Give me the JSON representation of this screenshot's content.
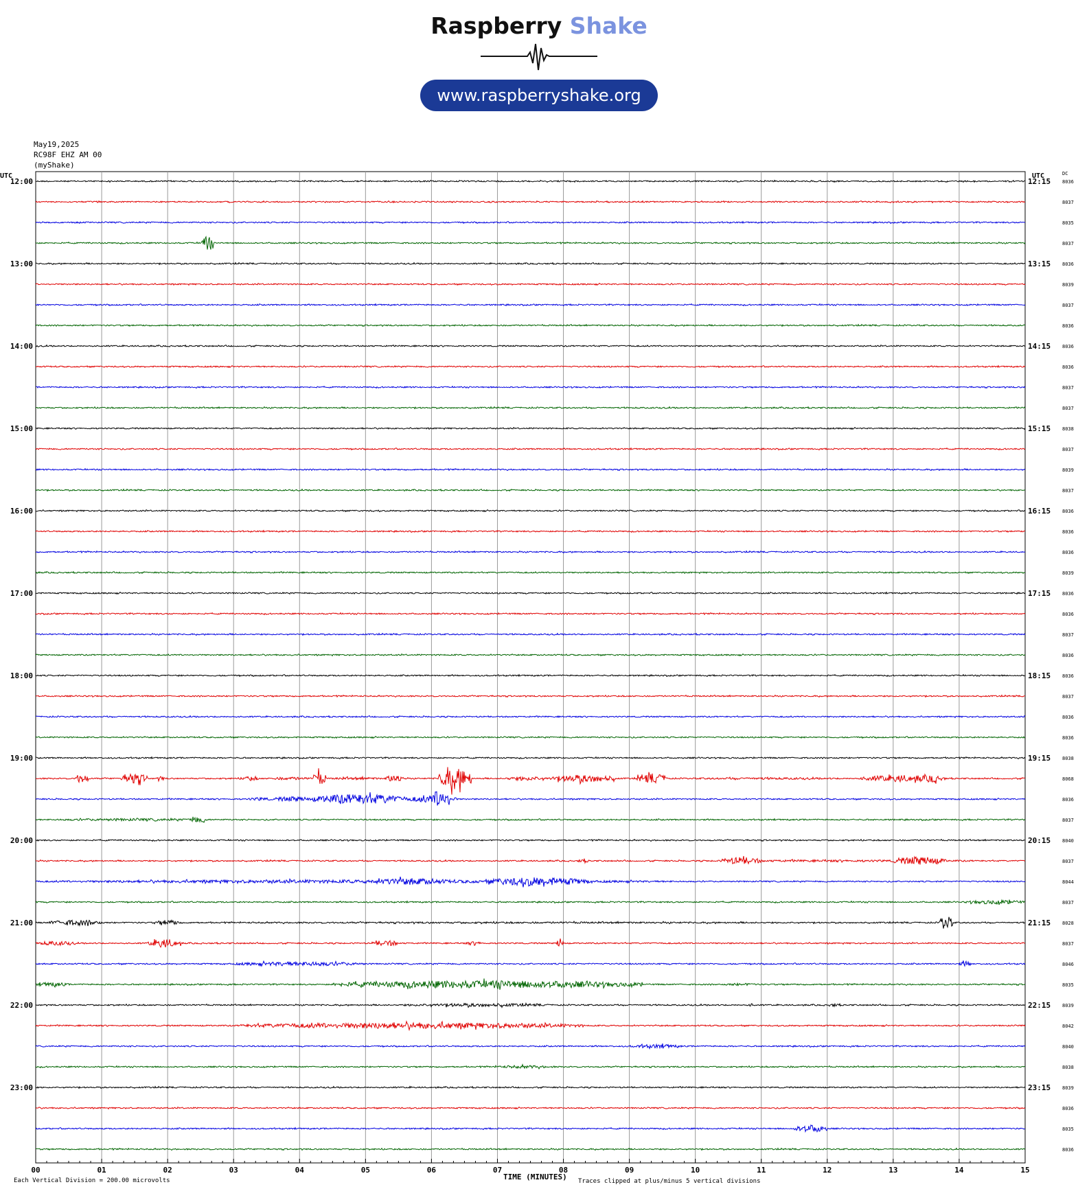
{
  "header": {
    "brand_word1": "Raspberry",
    "brand_word2": "Shake",
    "url": "www.raspberryshake.org"
  },
  "station": {
    "date": "May19,2025",
    "channel": "RC98F EHZ AM 00",
    "network": "(myShake)"
  },
  "footer": {
    "scale_note": "Each Vertical Division =  200.00 microvolts",
    "xlabel": "TIME (MINUTES)",
    "clip_note": "Traces clipped at plus/minus 5 vertical divisions"
  },
  "colors": {
    "trace_cycle": [
      "#000000",
      "#e00000",
      "#0000e0",
      "#006400"
    ],
    "grid": "#999999",
    "brand_accent": "#7b93df",
    "pill": "#1b3a96"
  },
  "chart_data": {
    "type": "line",
    "subtype": "helicorder",
    "xlabel": "TIME (MINUTES)",
    "left_axis_label": "UTC",
    "right_axis_label": "UTC",
    "right_column_label": "DC",
    "xlim": [
      0,
      15
    ],
    "x_tick_labels": [
      "00",
      "01",
      "02",
      "03",
      "04",
      "05",
      "06",
      "07",
      "08",
      "09",
      "10",
      "11",
      "12",
      "13",
      "14",
      "15"
    ],
    "left_hour_labels": [
      "12:00",
      "13:00",
      "14:00",
      "15:00",
      "16:00",
      "17:00",
      "18:00",
      "19:00",
      "20:00",
      "21:00",
      "22:00",
      "23:00"
    ],
    "right_quarter_labels": [
      "12:15",
      "13:15",
      "14:15",
      "15:15",
      "16:15",
      "17:15",
      "18:15",
      "19:15",
      "20:15",
      "21:15",
      "22:15",
      "23:15"
    ],
    "dc_offsets": [
      "8036",
      "8037",
      "8035",
      "8037",
      "8036",
      "8039",
      "8037",
      "8036",
      "8036",
      "8036",
      "8037",
      "8037",
      "8038",
      "8037",
      "8039",
      "8037",
      "8036",
      "8036",
      "8036",
      "8039",
      "8036",
      "8036",
      "8037",
      "8036",
      "8036",
      "8037",
      "8036",
      "8036",
      "8038",
      "8068",
      "8036",
      "8037",
      "8040",
      "8037",
      "8044",
      "8037",
      "8028",
      "8037",
      "8046",
      "8035",
      "8039",
      "8042",
      "8040",
      "8038",
      "8039",
      "8036",
      "8035",
      "8036"
    ],
    "trace_count": 48,
    "quiet_amplitude_divisions": 0.15,
    "clip_divisions": 5,
    "events": [
      {
        "trace": 3,
        "start_min": 2.5,
        "end_min": 2.7,
        "amp": 1.6
      },
      {
        "trace": 16,
        "start_min": 5.0,
        "end_min": 5.3,
        "amp": 0.2
      },
      {
        "trace": 29,
        "start_min": 0.6,
        "end_min": 0.8,
        "amp": 1.2
      },
      {
        "trace": 29,
        "start_min": 1.3,
        "end_min": 1.7,
        "amp": 1.2
      },
      {
        "trace": 29,
        "start_min": 1.85,
        "end_min": 1.95,
        "amp": 0.6
      },
      {
        "trace": 29,
        "start_min": 3.1,
        "end_min": 3.4,
        "amp": 0.5
      },
      {
        "trace": 29,
        "start_min": 3.5,
        "end_min": 4.2,
        "amp": 0.35
      },
      {
        "trace": 29,
        "start_min": 4.2,
        "end_min": 4.4,
        "amp": 1.6
      },
      {
        "trace": 29,
        "start_min": 4.4,
        "end_min": 5.3,
        "amp": 0.3
      },
      {
        "trace": 29,
        "start_min": 5.3,
        "end_min": 5.6,
        "amp": 0.9
      },
      {
        "trace": 29,
        "start_min": 6.1,
        "end_min": 6.6,
        "amp": 2.6
      },
      {
        "trace": 29,
        "start_min": 7.1,
        "end_min": 7.8,
        "amp": 0.5
      },
      {
        "trace": 29,
        "start_min": 7.8,
        "end_min": 8.8,
        "amp": 0.9
      },
      {
        "trace": 29,
        "start_min": 9.1,
        "end_min": 9.6,
        "amp": 1.1
      },
      {
        "trace": 29,
        "start_min": 9.6,
        "end_min": 12.5,
        "amp": 0.25
      },
      {
        "trace": 29,
        "start_min": 12.5,
        "end_min": 13.8,
        "amp": 0.8
      },
      {
        "trace": 29,
        "start_min": 13.5,
        "end_min": 13.7,
        "amp": 1.0
      },
      {
        "trace": 30,
        "start_min": 3.2,
        "end_min": 3.6,
        "amp": 0.4
      },
      {
        "trace": 30,
        "start_min": 3.6,
        "end_min": 4.2,
        "amp": 0.6
      },
      {
        "trace": 30,
        "start_min": 4.2,
        "end_min": 5.6,
        "amp": 1.2
      },
      {
        "trace": 30,
        "start_min": 5.6,
        "end_min": 6.4,
        "amp": 0.8
      },
      {
        "trace": 30,
        "start_min": 6.0,
        "end_min": 6.3,
        "amp": 2.4
      },
      {
        "trace": 31,
        "start_min": 0.2,
        "end_min": 2.7,
        "amp": 0.3
      },
      {
        "trace": 31,
        "start_min": 2.3,
        "end_min": 2.6,
        "amp": 0.7
      },
      {
        "trace": 33,
        "start_min": 8.2,
        "end_min": 8.4,
        "amp": 0.4
      },
      {
        "trace": 33,
        "start_min": 9.5,
        "end_min": 15.0,
        "amp": 0.25
      },
      {
        "trace": 33,
        "start_min": 10.4,
        "end_min": 11.0,
        "amp": 0.9
      },
      {
        "trace": 33,
        "start_min": 13.0,
        "end_min": 13.8,
        "amp": 1.0
      },
      {
        "trace": 34,
        "start_min": 0.0,
        "end_min": 9.7,
        "amp": 0.4
      },
      {
        "trace": 34,
        "start_min": 5.0,
        "end_min": 6.3,
        "amp": 0.8
      },
      {
        "trace": 34,
        "start_min": 6.8,
        "end_min": 8.4,
        "amp": 1.0
      },
      {
        "trace": 35,
        "start_min": 14.1,
        "end_min": 15.0,
        "amp": 0.5
      },
      {
        "trace": 36,
        "start_min": 0.0,
        "end_min": 15.0,
        "amp": 0.2
      },
      {
        "trace": 36,
        "start_min": 0.2,
        "end_min": 1.0,
        "amp": 0.7
      },
      {
        "trace": 36,
        "start_min": 1.8,
        "end_min": 2.2,
        "amp": 0.6
      },
      {
        "trace": 36,
        "start_min": 13.7,
        "end_min": 13.9,
        "amp": 1.6
      },
      {
        "trace": 37,
        "start_min": 0.0,
        "end_min": 0.6,
        "amp": 0.5
      },
      {
        "trace": 37,
        "start_min": 1.7,
        "end_min": 2.2,
        "amp": 1.0
      },
      {
        "trace": 37,
        "start_min": 5.1,
        "end_min": 5.5,
        "amp": 0.7
      },
      {
        "trace": 37,
        "start_min": 6.5,
        "end_min": 6.8,
        "amp": 0.4
      },
      {
        "trace": 37,
        "start_min": 7.9,
        "end_min": 8.0,
        "amp": 1.2
      },
      {
        "trace": 38,
        "start_min": 3.0,
        "end_min": 5.0,
        "amp": 0.5
      },
      {
        "trace": 38,
        "start_min": 14.0,
        "end_min": 14.2,
        "amp": 0.6
      },
      {
        "trace": 39,
        "start_min": 0.0,
        "end_min": 0.5,
        "amp": 0.5
      },
      {
        "trace": 39,
        "start_min": 4.5,
        "end_min": 9.2,
        "amp": 0.9
      },
      {
        "trace": 39,
        "start_min": 10.4,
        "end_min": 11.0,
        "amp": 0.3
      },
      {
        "trace": 40,
        "start_min": 5.5,
        "end_min": 7.8,
        "amp": 0.4
      },
      {
        "trace": 40,
        "start_min": 10.8,
        "end_min": 10.9,
        "amp": 0.4
      },
      {
        "trace": 40,
        "start_min": 12.0,
        "end_min": 12.2,
        "amp": 0.4
      },
      {
        "trace": 41,
        "start_min": 3.1,
        "end_min": 8.3,
        "amp": 0.7
      },
      {
        "trace": 42,
        "start_min": 9.0,
        "end_min": 9.8,
        "amp": 0.45
      },
      {
        "trace": 43,
        "start_min": 6.9,
        "end_min": 7.9,
        "amp": 0.35
      },
      {
        "trace": 43,
        "start_min": 11.0,
        "end_min": 12.0,
        "amp": 0.2
      },
      {
        "trace": 44,
        "start_min": 5.5,
        "end_min": 5.8,
        "amp": 0.2
      },
      {
        "trace": 46,
        "start_min": 11.5,
        "end_min": 12.0,
        "amp": 0.9
      }
    ]
  }
}
